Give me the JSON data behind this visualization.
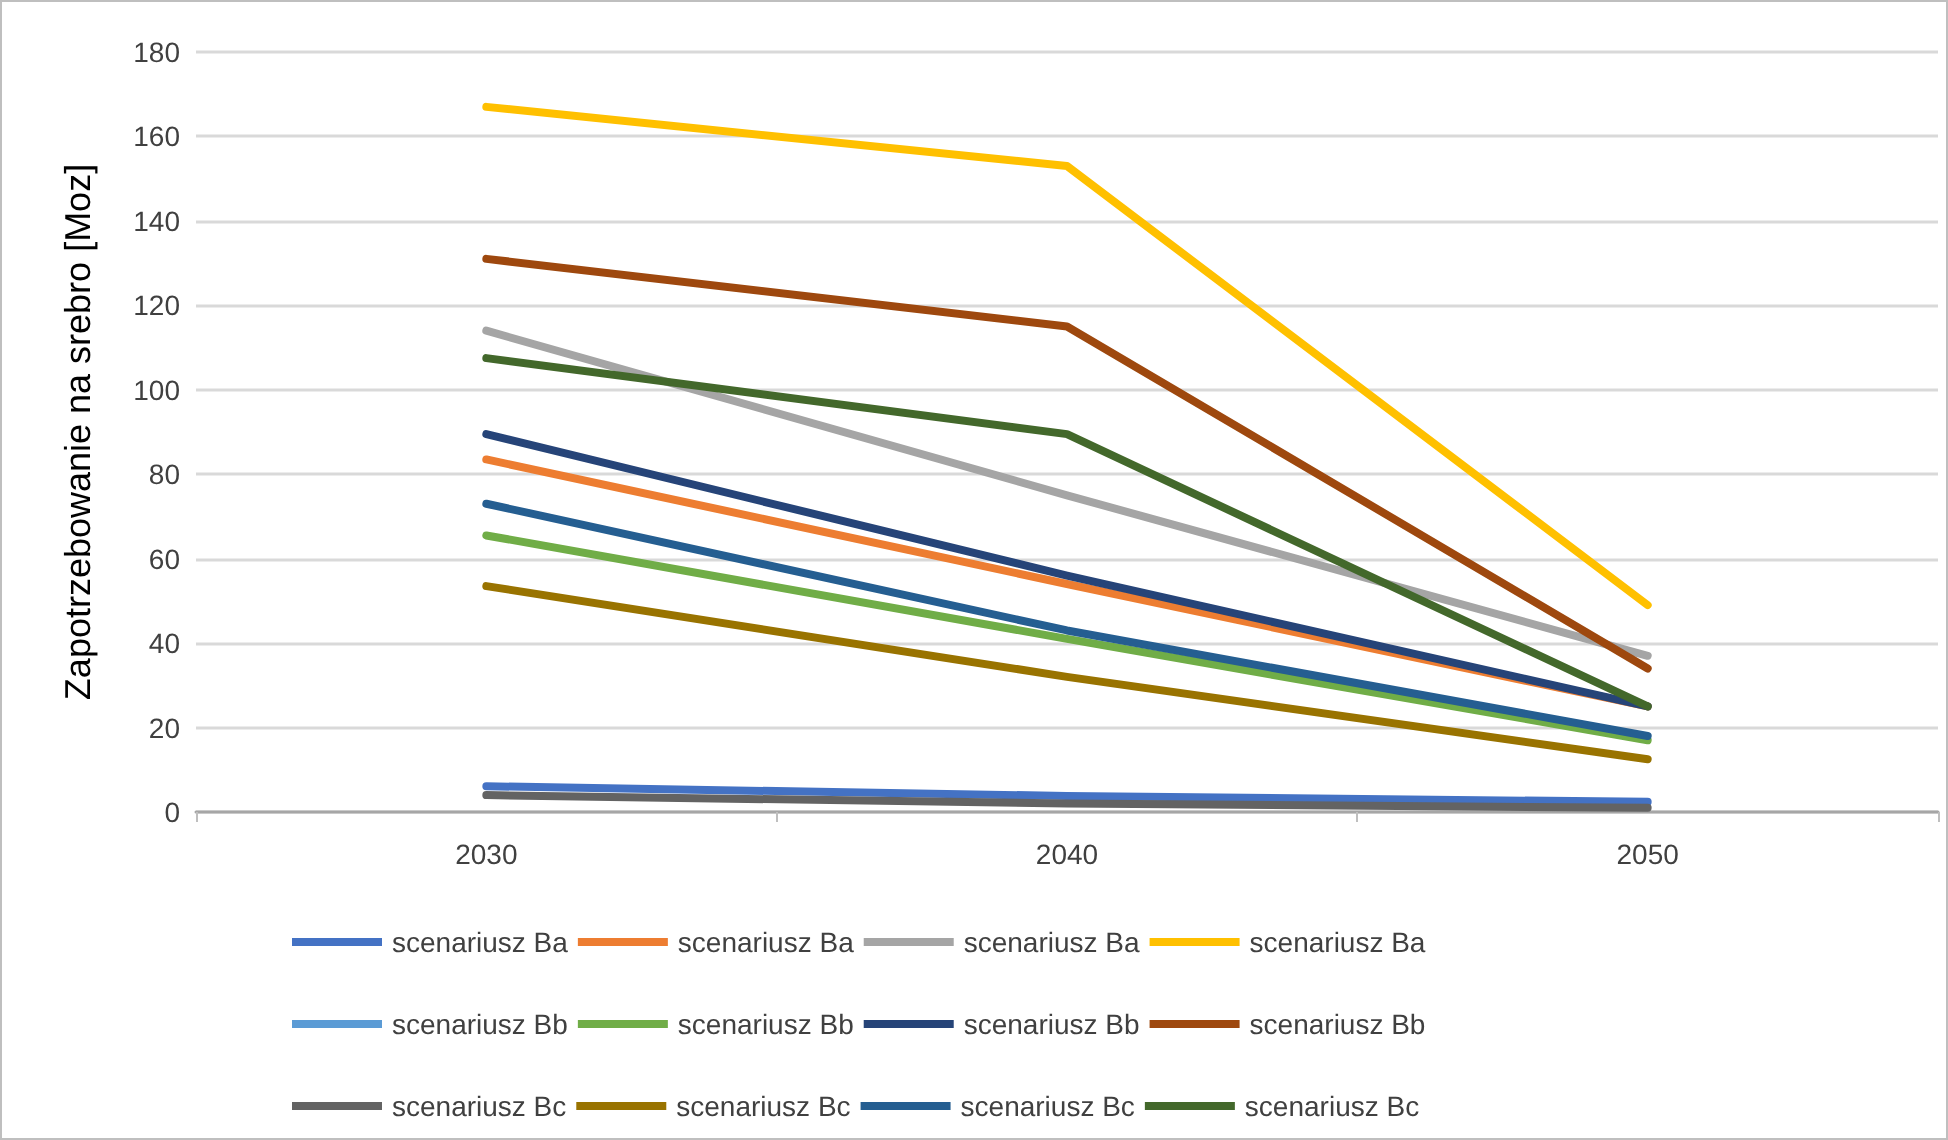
{
  "chart_data": {
    "type": "line",
    "ylabel": "Zapotrzebowanie na srebro [Moz]",
    "categories": [
      "2030",
      "2040",
      "2050"
    ],
    "ylim": [
      0,
      180
    ],
    "yticks": [
      0,
      20,
      40,
      60,
      80,
      100,
      120,
      140,
      160,
      180
    ],
    "grid": "y",
    "legend": "bottom",
    "marker": "none",
    "series": [
      {
        "name": "scenariusz Ba",
        "color": "#4472c4",
        "values": [
          6.1,
          3.8,
          2.4
        ]
      },
      {
        "name": "scenariusz Ba",
        "color": "#ed7d31",
        "values": [
          83.5,
          54,
          25
        ]
      },
      {
        "name": "scenariusz Ba",
        "color": "#a5a5a5",
        "values": [
          114,
          75,
          37
        ]
      },
      {
        "name": "scenariusz Ba",
        "color": "#ffc000",
        "values": [
          167,
          153,
          49
        ]
      },
      {
        "name": "scenariusz Bb",
        "color": "#5b9bd5",
        "values": [
          null,
          null,
          null
        ]
      },
      {
        "name": "scenariusz Bb",
        "color": "#70ad47",
        "values": [
          65.5,
          41,
          17
        ]
      },
      {
        "name": "scenariusz Bb",
        "color": "#264478",
        "values": [
          89.5,
          56,
          25
        ]
      },
      {
        "name": "scenariusz Bb",
        "color": "#9e480e",
        "values": [
          131,
          115,
          34
        ]
      },
      {
        "name": "scenariusz Bc",
        "color": "#636363",
        "values": [
          4,
          2,
          1
        ]
      },
      {
        "name": "scenariusz Bc",
        "color": "#997300",
        "values": [
          53.5,
          32,
          12.5
        ]
      },
      {
        "name": "scenariusz Bc",
        "color": "#255e91",
        "values": [
          73,
          43,
          18
        ]
      },
      {
        "name": "scenariusz Bc",
        "color": "#43682b",
        "values": [
          107.5,
          89.5,
          25
        ]
      }
    ]
  }
}
